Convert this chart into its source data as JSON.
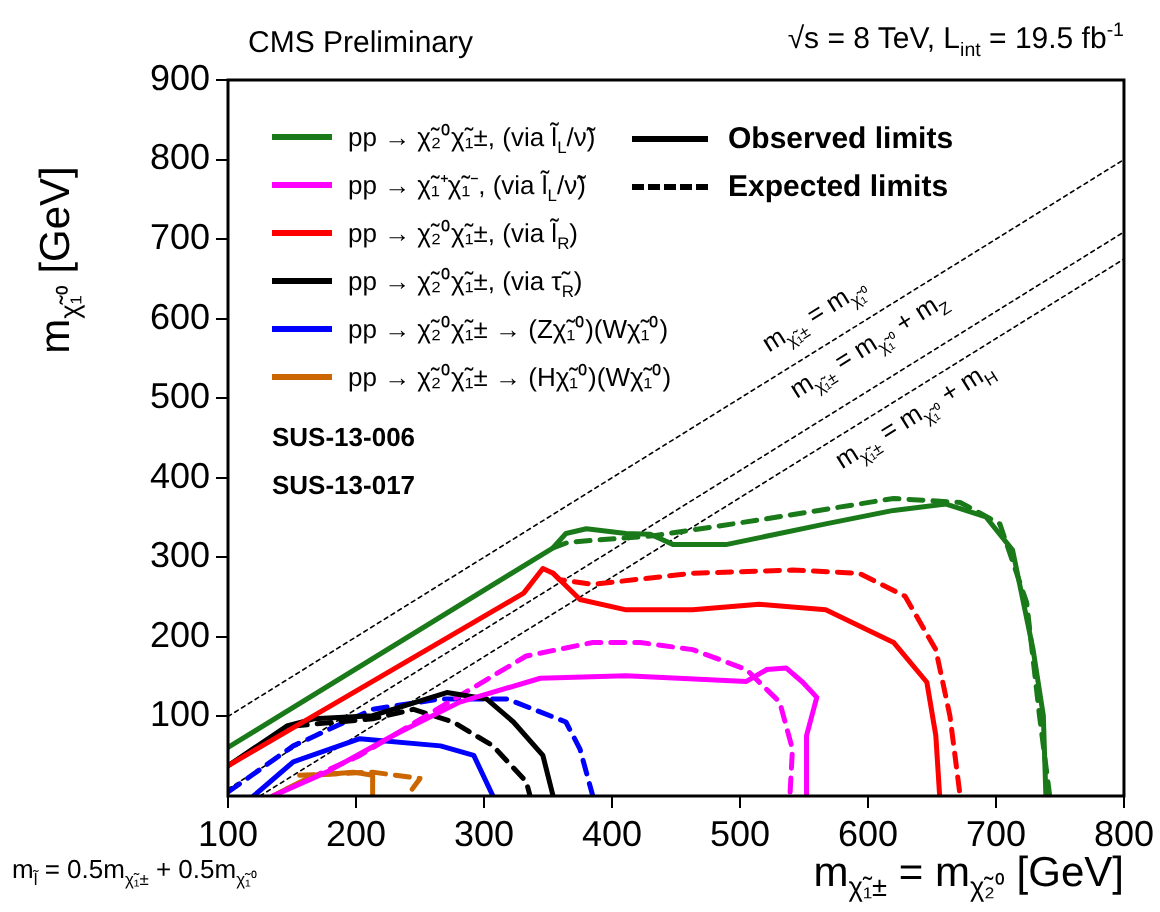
{
  "chart_data": {
    "type": "line",
    "title": "CMS Preliminary",
    "subtitle": "√s = 8 TeV, L$_{int}$ = 19.5 fb$^{-1}$",
    "xlabel": "m$_{χ̃₁±}$ = m$_{χ̃₂⁰}$  [GeV]",
    "ylabel": "m$_{χ̃₁⁰}$  [GeV]",
    "xlim": [
      100,
      800
    ],
    "xticks": [
      100,
      200,
      300,
      400,
      500,
      600,
      700,
      800
    ],
    "ylim": [
      0,
      900
    ],
    "yticks": [
      100,
      200,
      300,
      400,
      500,
      600,
      700,
      800,
      900
    ],
    "grid": false,
    "legend": "top left",
    "marker": "none",
    "series": [
      {
        "name": "pp → χ̃₂⁰χ̃₁±, (via l̃$_{L}$/ν̃)",
        "color": "#1a7a1a",
        "line_style": "solid",
        "x": [
          100,
          354,
          364,
          380,
          411,
          430,
          448,
          489,
          567,
          620,
          661,
          692,
          713,
          729,
          737,
          739
        ],
        "values": [
          61,
          312,
          330,
          336,
          330,
          329,
          316,
          316,
          342,
          359,
          367,
          351,
          309,
          184,
          101,
          0
        ]
      },
      {
        "name": "pp → χ̃₁⁺χ̃₁⁻, (via l̃$_{L}$/ν̃)",
        "color": "#ff00ff",
        "line_style": "solid",
        "x": [
          135,
          177,
          229,
          281,
          344,
          411,
          505,
          521,
          536,
          549,
          560,
          552,
          552
        ],
        "values": [
          0,
          30,
          76,
          118,
          148,
          151,
          144,
          159,
          161,
          143,
          124,
          76,
          0
        ]
      },
      {
        "name": "pp → χ̃₂⁰χ̃₁±, (via l̃$_{R}$)",
        "color": "#ff0000",
        "line_style": "solid",
        "x": [
          100,
          331,
          346,
          354,
          375,
          411,
          463,
          515,
          567,
          620,
          646,
          653,
          656
        ],
        "values": [
          38,
          255,
          286,
          280,
          247,
          234,
          234,
          241,
          234,
          193,
          143,
          76,
          0
        ]
      },
      {
        "name": "pp → χ̃₂⁰χ̃₁±, (via τ̃$_{R}$)",
        "color": "#000000",
        "line_style": "solid",
        "x": [
          100,
          146,
          167,
          213,
          271,
          302,
          323,
          346,
          354
        ],
        "values": [
          38,
          88,
          97,
          101,
          130,
          122,
          93,
          51,
          0
        ]
      },
      {
        "name": "pp → χ̃₂⁰χ̃₁± → (Zχ̃₁⁰)(Wχ̃₁⁰)",
        "color": "#0000ff",
        "line_style": "solid",
        "x": [
          120,
          151,
          203,
          266,
          292,
          307
        ],
        "values": [
          0,
          43,
          72,
          63,
          51,
          0
        ]
      },
      {
        "name": "pp → χ̃₂⁰χ̃₁± → (Hχ̃₁⁰)(Wχ̃₁⁰)",
        "color": "#cc6600",
        "line_style": "solid",
        "x": [
          135,
          167,
          198,
          213,
          213
        ],
        "values": [
          0,
          26,
          30,
          26,
          0
        ]
      },
      {
        "color": "#1a7a1a",
        "line_style": "dashed",
        "x": [
          354,
          366,
          432,
          515,
          620,
          672,
          703,
          724,
          734,
          742
        ],
        "values": [
          312,
          319,
          327,
          347,
          374,
          369,
          342,
          243,
          101,
          0
        ]
      },
      {
        "color": "#ff00ff",
        "line_style": "dashed",
        "x": [
          146,
          203,
          281,
          333,
          385,
          422,
          463,
          505,
          531,
          541,
          539
        ],
        "values": [
          9,
          51,
          126,
          176,
          193,
          193,
          184,
          159,
          118,
          59,
          0
        ]
      },
      {
        "color": "#ff0000",
        "line_style": "dashed",
        "x": [
          354,
          359,
          385,
          463,
          541,
          593,
          629,
          653,
          664,
          672
        ],
        "values": [
          280,
          272,
          266,
          280,
          284,
          280,
          251,
          184,
          101,
          0
        ]
      },
      {
        "color": "#000000",
        "line_style": "dashed",
        "x": [
          151,
          213,
          245,
          276,
          307,
          333,
          336
        ],
        "values": [
          88,
          97,
          109,
          93,
          63,
          18,
          0
        ]
      },
      {
        "color": "#0000ff",
        "line_style": "dashed",
        "x": [
          100,
          151,
          213,
          266,
          318,
          364,
          375,
          385
        ],
        "values": [
          5,
          63,
          109,
          122,
          122,
          93,
          59,
          0
        ]
      },
      {
        "color": "#cc6600",
        "line_style": "dashed",
        "x": [
          156,
          213,
          250,
          240
        ],
        "values": [
          26,
          30,
          22,
          0
        ]
      },
      {
        "color": "#000000",
        "line_style": "dotted",
        "x": [
          100,
          800
        ],
        "values": [
          100,
          800
        ]
      },
      {
        "color": "#000000",
        "line_style": "dotted",
        "x": [
          100,
          800
        ],
        "values": [
          9,
          709
        ]
      },
      {
        "color": "#000000",
        "line_style": "dotted",
        "x": [
          125,
          800
        ],
        "values": [
          0,
          675
        ]
      }
    ],
    "annotations": [
      "SUS-13-006",
      "SUS-13-017",
      "m$_{l̃}$ = 0.5m$_{χ̃₁±}$ + 0.5m$_{χ̃₁⁰}$",
      "Observed limits",
      "Expected limits",
      "m$_{χ̃₁±}$ = m$_{χ̃₁⁰}$",
      "m$_{χ̃₁±}$ = m$_{χ̃₁⁰}$ + m$_{Z}$",
      "m$_{χ̃₁±}$ = m$_{χ̃₁⁰}$ + m$_{H}$"
    ]
  }
}
